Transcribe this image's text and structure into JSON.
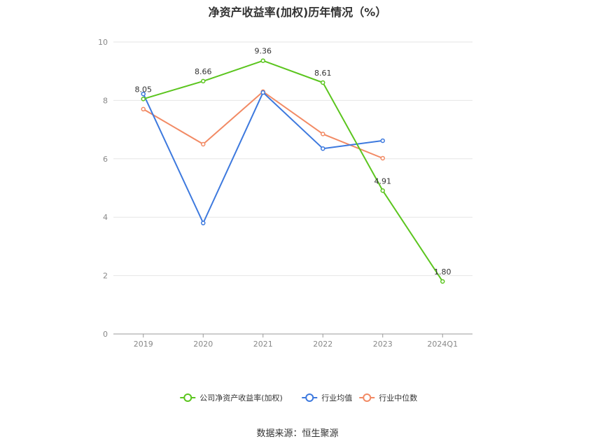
{
  "chart_data": {
    "type": "line",
    "title": "净资产收益率(加权)历年情况（%）",
    "categories": [
      "2019",
      "2020",
      "2021",
      "2022",
      "2023",
      "2024Q1"
    ],
    "ylim": [
      0,
      10
    ],
    "yticks": [
      "0",
      "2",
      "4",
      "6",
      "8",
      "10"
    ],
    "grid": true,
    "legend_position": "bottom",
    "series": [
      {
        "name": "公司净资产收益率(加权)",
        "color": "#5bc51e",
        "values": [
          8.05,
          8.66,
          9.36,
          8.61,
          4.91,
          1.8
        ],
        "labels": [
          "8.05",
          "8.66",
          "9.36",
          "8.61",
          "4.91",
          "1.80"
        ]
      },
      {
        "name": "行业均值",
        "color": "#3d79de",
        "values": [
          8.22,
          3.8,
          8.27,
          6.35,
          6.62,
          null
        ]
      },
      {
        "name": "行业中位数",
        "color": "#f28a64",
        "values": [
          7.7,
          6.5,
          8.3,
          6.85,
          6.02,
          null
        ]
      }
    ]
  },
  "source": "数据来源：恒生聚源"
}
